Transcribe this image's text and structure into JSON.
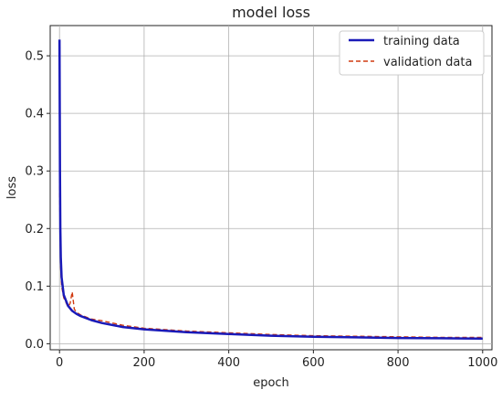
{
  "chart_data": {
    "type": "line",
    "title": "model loss",
    "xlabel": "epoch",
    "ylabel": "loss",
    "xlim": [
      -22,
      1022
    ],
    "ylim": [
      -0.0105,
      0.5525
    ],
    "xticks": [
      0,
      200,
      400,
      600,
      800,
      1000
    ],
    "xtick_labels": [
      "0",
      "200",
      "400",
      "600",
      "800",
      "1000"
    ],
    "yticks": [
      0.0,
      0.1,
      0.2,
      0.3,
      0.4,
      0.5
    ],
    "ytick_labels": [
      "0.0",
      "0.1",
      "0.2",
      "0.3",
      "0.4",
      "0.5"
    ],
    "grid": true,
    "legend_position": "top-right",
    "series": [
      {
        "name": "training data",
        "color": "#1a1ab8",
        "style": "solid",
        "x": [
          0,
          1,
          2,
          3,
          5,
          10,
          20,
          30,
          40,
          50,
          75,
          100,
          150,
          200,
          300,
          400,
          500,
          600,
          700,
          800,
          900,
          1000
        ],
        "y": [
          0.528,
          0.3,
          0.2,
          0.15,
          0.115,
          0.085,
          0.066,
          0.057,
          0.052,
          0.048,
          0.041,
          0.036,
          0.029,
          0.025,
          0.02,
          0.017,
          0.014,
          0.012,
          0.011,
          0.01,
          0.0095,
          0.009
        ]
      },
      {
        "name": "validation data",
        "color": "#d03a10",
        "style": "dashed",
        "x": [
          0,
          1,
          2,
          3,
          5,
          10,
          20,
          25,
          30,
          35,
          40,
          50,
          75,
          100,
          150,
          200,
          300,
          400,
          500,
          600,
          700,
          800,
          900,
          1000
        ],
        "y": [
          0.3,
          0.22,
          0.17,
          0.13,
          0.1,
          0.08,
          0.064,
          0.07,
          0.09,
          0.06,
          0.055,
          0.05,
          0.043,
          0.04,
          0.032,
          0.027,
          0.022,
          0.019,
          0.016,
          0.014,
          0.013,
          0.012,
          0.011,
          0.011
        ]
      }
    ]
  }
}
